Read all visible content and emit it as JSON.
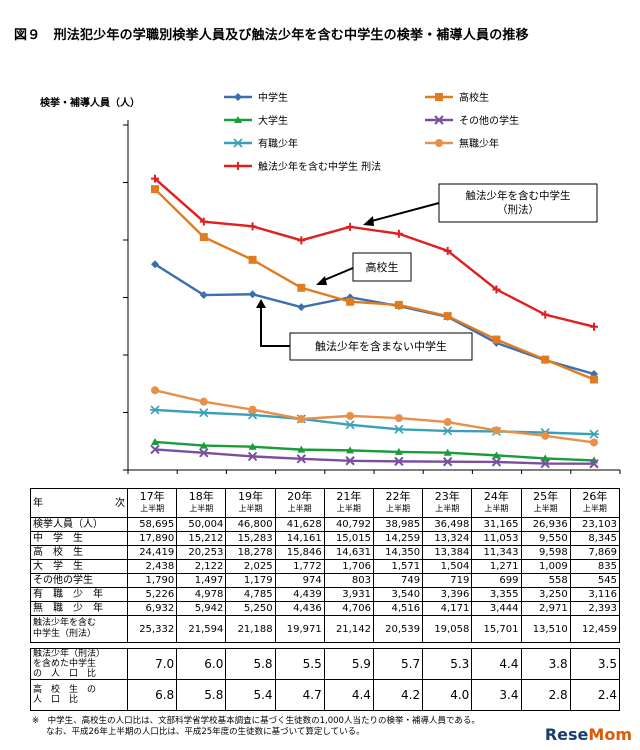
{
  "figure": {
    "title": "図９　刑法犯少年の学職別検挙人員及び触法少年を含む中学生の検挙・補導人員の推移",
    "ylabel": "検挙・補導人員（人）"
  },
  "colors": {
    "junior_high": "#3a6fb0",
    "high_school": "#e07b20",
    "university": "#1a9c3a",
    "other_students": "#7b4fa0",
    "employed": "#3aa0b8",
    "unemployed": "#e8904a",
    "junior_high_incl": "#e02020"
  },
  "chart_data": {
    "type": "line",
    "categories": [
      "17年",
      "18年",
      "19年",
      "20年",
      "21年",
      "22年",
      "23年",
      "24年",
      "25年",
      "26年"
    ],
    "series": [
      {
        "key": "junior_high",
        "name": "中学生",
        "marker": "diamond",
        "values": [
          17890,
          15212,
          15283,
          14161,
          15015,
          14259,
          13324,
          11053,
          9550,
          8345
        ]
      },
      {
        "key": "high_school",
        "name": "高校生",
        "marker": "square",
        "values": [
          24419,
          20253,
          18278,
          15846,
          14631,
          14350,
          13384,
          11343,
          9598,
          7869
        ]
      },
      {
        "key": "university",
        "name": "大学生",
        "marker": "triangle",
        "values": [
          2438,
          2122,
          2025,
          1772,
          1706,
          1571,
          1504,
          1271,
          1009,
          835
        ]
      },
      {
        "key": "other_students",
        "name": "その他の学生",
        "marker": "x",
        "values": [
          1790,
          1497,
          1179,
          974,
          803,
          749,
          719,
          699,
          558,
          545
        ]
      },
      {
        "key": "employed",
        "name": "有職少年",
        "marker": "star",
        "values": [
          5226,
          4978,
          4785,
          4439,
          3931,
          3540,
          3396,
          3355,
          3250,
          3116
        ]
      },
      {
        "key": "unemployed",
        "name": "無職少年",
        "marker": "circle",
        "values": [
          6932,
          5942,
          5250,
          4436,
          4706,
          4516,
          4171,
          3444,
          2971,
          2393
        ]
      },
      {
        "key": "junior_high_incl",
        "name": "触法少年を含む中学生 刑法",
        "marker": "plus",
        "values": [
          25332,
          21594,
          21188,
          19971,
          21142,
          20539,
          19058,
          15701,
          13510,
          12459
        ]
      }
    ],
    "ylim": [
      0,
      30000
    ],
    "grid": false,
    "legend": "top",
    "annotations": [
      {
        "text": "触法少年を含む中学生（刑法）"
      },
      {
        "text": "高校生"
      },
      {
        "text": "触法少年を含まない中学生"
      }
    ]
  },
  "table": {
    "corner_left": "年",
    "corner_right": "次",
    "years": [
      "17年",
      "18年",
      "19年",
      "20年",
      "21年",
      "22年",
      "23年",
      "24年",
      "25年",
      "26年"
    ],
    "period": "上半期",
    "rows": [
      {
        "label": "検挙人員（人）",
        "values": [
          "58,695",
          "50,004",
          "46,800",
          "41,628",
          "40,792",
          "38,985",
          "36,498",
          "31,165",
          "26,936",
          "23,103"
        ]
      },
      {
        "label": "中　学　生",
        "values": [
          "17,890",
          "15,212",
          "15,283",
          "14,161",
          "15,015",
          "14,259",
          "13,324",
          "11,053",
          "9,550",
          "8,345"
        ]
      },
      {
        "label": "高　校　生",
        "values": [
          "24,419",
          "20,253",
          "18,278",
          "15,846",
          "14,631",
          "14,350",
          "13,384",
          "11,343",
          "9,598",
          "7,869"
        ]
      },
      {
        "label": "大　学　生",
        "values": [
          "2,438",
          "2,122",
          "2,025",
          "1,772",
          "1,706",
          "1,571",
          "1,504",
          "1,271",
          "1,009",
          "835"
        ]
      },
      {
        "label": "その他の学生",
        "values": [
          "1,790",
          "1,497",
          "1,179",
          "974",
          "803",
          "749",
          "719",
          "699",
          "558",
          "545"
        ]
      },
      {
        "label": "有　職　少　年",
        "values": [
          "5,226",
          "4,978",
          "4,785",
          "4,439",
          "3,931",
          "3,540",
          "3,396",
          "3,355",
          "3,250",
          "3,116"
        ]
      },
      {
        "label": "無　職　少　年",
        "values": [
          "6,932",
          "5,942",
          "5,250",
          "4,436",
          "4,706",
          "4,516",
          "4,171",
          "3,444",
          "2,971",
          "2,393"
        ]
      }
    ],
    "incl_row": {
      "label1": "触法少年を含む",
      "label2": "中学生（刑法）",
      "values": [
        "25,332",
        "21,594",
        "21,188",
        "19,971",
        "21,142",
        "20,539",
        "19,058",
        "15,701",
        "13,510",
        "12,459"
      ]
    }
  },
  "ratio_table": {
    "rows": [
      {
        "label1": "触法少年（刑法）",
        "label2": "を含めた中学生",
        "label3": "の　人　口　比",
        "values": [
          "7.0",
          "6.0",
          "5.8",
          "5.5",
          "5.9",
          "5.7",
          "5.3",
          "4.4",
          "3.8",
          "3.5"
        ]
      },
      {
        "label1": "高　校　生　の",
        "label2": "人　口　比",
        "label3": "",
        "values": [
          "6.8",
          "5.8",
          "5.4",
          "4.7",
          "4.4",
          "4.2",
          "4.0",
          "3.4",
          "2.8",
          "2.4"
        ]
      }
    ]
  },
  "footnote": {
    "line1": "※　中学生、高校生の人口比は、文部科学省学校基本調査に基づく生徒数の1,000人当たりの検挙・補導人員である。",
    "line2": "なお、平成26年上半期の人口比は、平成25年度の生徒数に基づいて算定している。"
  },
  "logo": {
    "a": "Rese",
    "b": "Mom"
  }
}
